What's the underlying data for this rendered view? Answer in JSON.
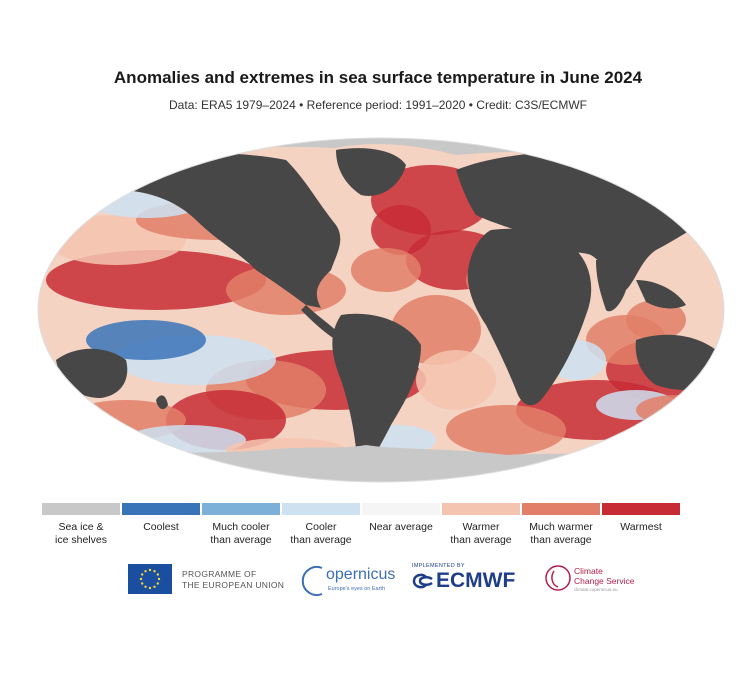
{
  "title": "Anomalies and extremes in sea surface temperature in June 2024",
  "subtitle": "Data: ERA5 1979–2024 • Reference period: 1991–2020 • Credit: C3S/ECMWF",
  "legend": [
    {
      "label_lines": [
        "Sea ice &",
        "ice shelves"
      ],
      "color": "#c8c8c8"
    },
    {
      "label_lines": [
        "Coolest",
        ""
      ],
      "color": "#3a74b8"
    },
    {
      "label_lines": [
        "Much cooler",
        "than average"
      ],
      "color": "#7db0d8"
    },
    {
      "label_lines": [
        "Cooler",
        "than average"
      ],
      "color": "#cde1f1"
    },
    {
      "label_lines": [
        "Near average",
        ""
      ],
      "color": "#f5f5f5"
    },
    {
      "label_lines": [
        "Warmer",
        "than average"
      ],
      "color": "#f5c4b0"
    },
    {
      "label_lines": [
        "Much warmer",
        "than average"
      ],
      "color": "#e27f68"
    },
    {
      "label_lines": [
        "Warmest",
        ""
      ],
      "color": "#c72c35"
    }
  ],
  "map_colors": {
    "land": "#474747",
    "sea_ice": "#c8c8c8",
    "warm": "#e27f68",
    "warmest": "#c72c35",
    "warmer": "#f5c4b0",
    "cool": "#cde1f1",
    "coolest": "#3a74b8"
  },
  "logos": {
    "eu": [
      "PROGRAMME OF",
      "THE EUROPEAN UNION"
    ],
    "copernicus": "opernicus",
    "copernicus_tagline": "Europe's eyes on Earth",
    "ecmwf_implemented": "IMPLEMENTED BY",
    "ecmwf": "ECMWF",
    "c3s": [
      "Climate",
      "Change Service"
    ],
    "c3s_url": "climate.copernicus.eu"
  }
}
